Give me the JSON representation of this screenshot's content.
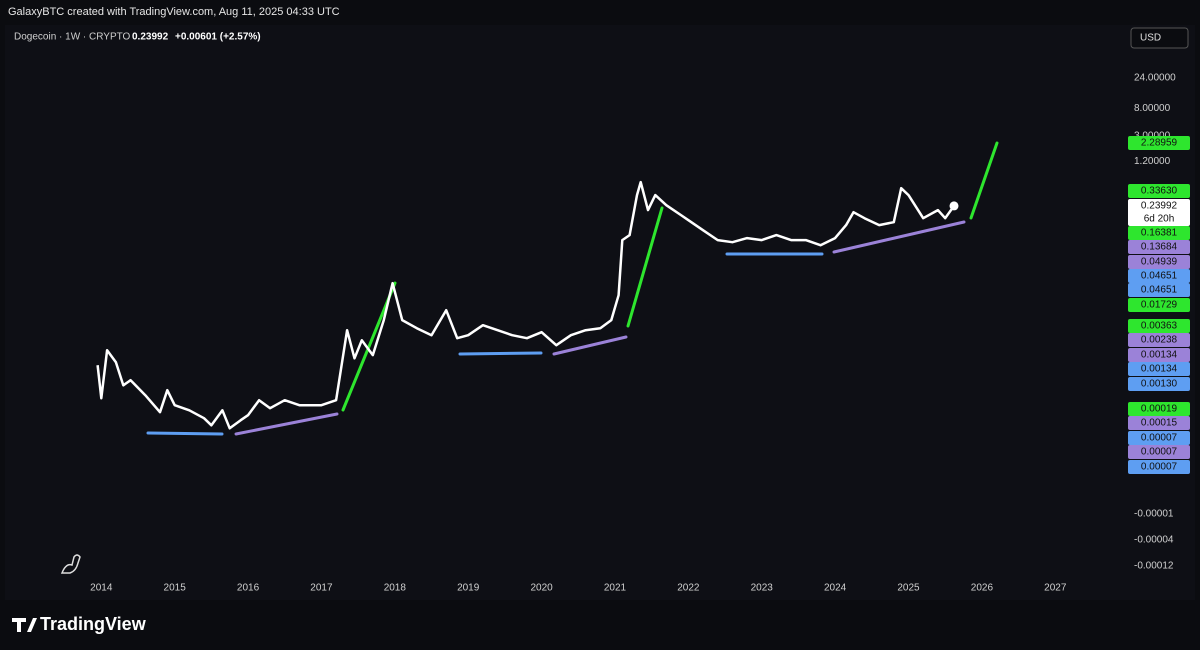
{
  "header": {
    "attribution": "GalaxyBTC created with TradingView.com, Aug 11, 2025 04:33 UTC"
  },
  "chart_data": {
    "type": "line",
    "title": "Dogecoin · 1W · CRYPTO",
    "last_price": "0.23992",
    "change": "+0.00601 (+2.57%)",
    "currency": "USD",
    "countdown": "6d 20h",
    "x": [
      2013.95,
      2014.0,
      2014.08,
      2014.2,
      2014.3,
      2014.4,
      2014.6,
      2014.8,
      2014.9,
      2015.0,
      2015.2,
      2015.4,
      2015.5,
      2015.65,
      2015.75,
      2015.9,
      2016.0,
      2016.15,
      2016.3,
      2016.5,
      2016.7,
      2017.0,
      2017.2,
      2017.35,
      2017.45,
      2017.55,
      2017.7,
      2017.85,
      2017.97,
      2018.1,
      2018.3,
      2018.5,
      2018.7,
      2018.85,
      2019.0,
      2019.2,
      2019.4,
      2019.6,
      2019.8,
      2020.0,
      2020.2,
      2020.4,
      2020.6,
      2020.8,
      2020.95,
      2021.05,
      2021.1,
      2021.2,
      2021.3,
      2021.35,
      2021.45,
      2021.55,
      2021.7,
      2021.9,
      2022.0,
      2022.2,
      2022.4,
      2022.6,
      2022.8,
      2023.0,
      2023.2,
      2023.4,
      2023.6,
      2023.8,
      2024.0,
      2024.15,
      2024.25,
      2024.4,
      2024.6,
      2024.8,
      2024.9,
      2025.0,
      2025.2,
      2025.4,
      2025.5,
      2025.62
    ],
    "series": [
      {
        "color": "#ffffff",
        "values": [
          0.000779,
          0.000238,
          0.001337,
          0.000867,
          0.000379,
          0.000454,
          0.000265,
          0.000144,
          0.000317,
          0.000185,
          0.000154,
          0.000116,
          8.99e-05,
          0.000154,
          8.07e-05,
          0.000108,
          0.000129,
          0.000221,
          0.000166,
          0.000221,
          0.000185,
          0.000185,
          0.000221,
          0.00274,
          0.001,
          0.00191,
          0.00112,
          0.00394,
          0.0149,
          0.00394,
          0.00295,
          0.00229,
          0.00564,
          0.00206,
          0.00229,
          0.00329,
          0.00274,
          0.00229,
          0.00206,
          0.00255,
          0.0016,
          0.00229,
          0.00274,
          0.00295,
          0.00394,
          0.00966,
          0.07,
          0.0838,
          0.353,
          0.564,
          0.206,
          0.353,
          0.246,
          0.172,
          0.1435,
          0.1,
          0.07,
          0.065,
          0.0752,
          0.07,
          0.0838,
          0.07,
          0.07,
          0.0583,
          0.0752,
          0.12,
          0.191,
          0.154,
          0.12,
          0.1336,
          0.454,
          0.353,
          0.154,
          0.206,
          0.154,
          0.23992
        ]
      }
    ],
    "xlim": [
      2012.62,
      2027.95
    ],
    "xticks": [
      2014,
      2015,
      2016,
      2017,
      2018,
      2019,
      2020,
      2021,
      2022,
      2023,
      2024,
      2025,
      2026,
      2027
    ],
    "ylim": [
      3.7e-07,
      144
    ],
    "log_scale": true,
    "yticks": [
      {
        "value": 24,
        "label": "24.00000"
      },
      {
        "value": 8,
        "label": "8.00000"
      },
      {
        "value": 3,
        "label": "3.00000"
      },
      {
        "value": 1.2,
        "label": "1.20000"
      }
    ],
    "lower_axis_labels": [
      "-0.00001",
      "-0.00004",
      "-0.00012"
    ],
    "price_badges": [
      {
        "label": "2.28959",
        "color": "#2ee62e"
      },
      {
        "label": "0.33630",
        "color": "#2ee62e"
      },
      {
        "label": "0.16381",
        "color": "#2ee62e"
      },
      {
        "label": "0.13684",
        "color": "#9b82d8"
      },
      {
        "label": "0.04939",
        "color": "#9b82d8"
      },
      {
        "label": "0.04651",
        "color": "#5e9ef2"
      },
      {
        "label": "0.04651",
        "color": "#5e9ef2"
      },
      {
        "label": "0.01729",
        "color": "#2ee62e"
      },
      {
        "label": "0.00363",
        "color": "#2ee62e"
      },
      {
        "label": "0.00238",
        "color": "#9b82d8"
      },
      {
        "label": "0.00134",
        "color": "#9b82d8"
      },
      {
        "label": "0.00134",
        "color": "#5e9ef2"
      },
      {
        "label": "0.00130",
        "color": "#5e9ef2"
      },
      {
        "label": "0.00019",
        "color": "#2ee62e"
      },
      {
        "label": "0.00015",
        "color": "#9b82d8"
      },
      {
        "label": "0.00007",
        "color": "#5e9ef2"
      },
      {
        "label": "0.00007",
        "color": "#9b82d8"
      },
      {
        "label": "0.00007",
        "color": "#5e9ef2"
      }
    ]
  },
  "footer": {
    "brand": "TradingView"
  }
}
